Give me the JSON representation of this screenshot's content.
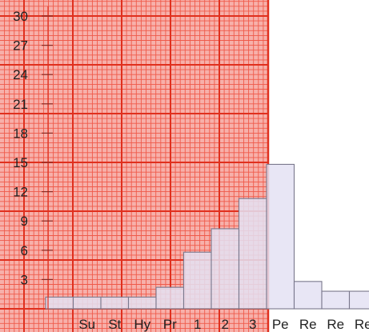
{
  "chart_data": {
    "type": "bar",
    "title": "",
    "xlabel": "",
    "ylabel": "",
    "ylim": [
      0,
      31
    ],
    "yticks": [
      3,
      6,
      9,
      12,
      15,
      18,
      21,
      24,
      27,
      30
    ],
    "grid": true,
    "categories": [
      "",
      "Su",
      "St",
      "Hy",
      "Pr",
      "1",
      "2",
      "3",
      "Pe",
      "Re",
      "Re",
      "Re"
    ],
    "values": [
      1.2,
      1.2,
      1.2,
      1.2,
      2.2,
      5.8,
      8.2,
      11.3,
      14.8,
      2.8,
      1.8,
      1.8
    ],
    "highlighted_range": [
      "",
      "Pe"
    ]
  },
  "colors": {
    "grid_minor": "#ef5a4a",
    "grid_major": "#e0301e",
    "grid_fill": "#f7b0aa",
    "bar_fill": "#e4e2f3",
    "bar_stroke": "#7a788c",
    "text": "#222222"
  }
}
